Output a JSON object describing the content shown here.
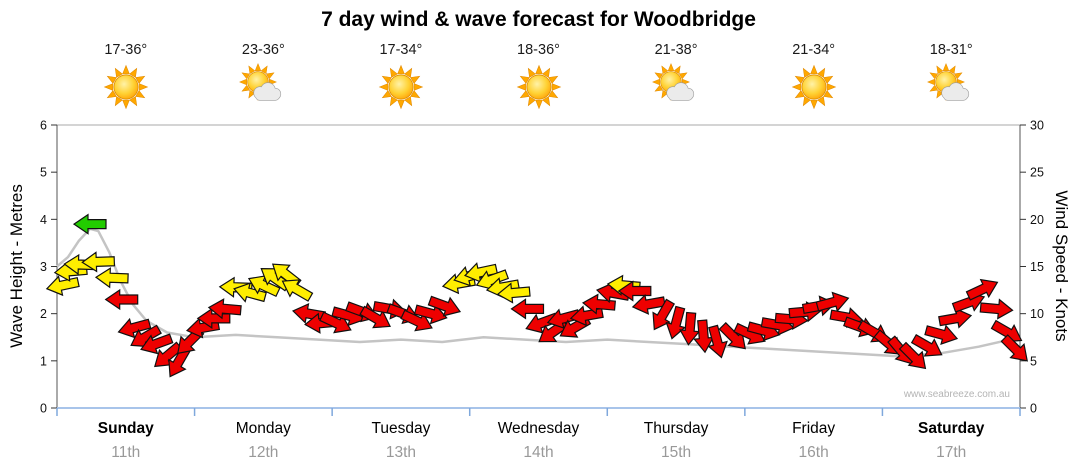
{
  "title": "7 day wind & wave forecast for Woodbridge",
  "watermark": "www.seabreeze.com.au",
  "days": [
    {
      "name": "Sunday",
      "date": "11th",
      "temp": "17-36°",
      "icon": "sunny",
      "bold": true
    },
    {
      "name": "Monday",
      "date": "12th",
      "temp": "23-36°",
      "icon": "partly-cloudy",
      "bold": false
    },
    {
      "name": "Tuesday",
      "date": "13th",
      "temp": "17-34°",
      "icon": "sunny",
      "bold": false
    },
    {
      "name": "Wednesday",
      "date": "14th",
      "temp": "18-36°",
      "icon": "sunny",
      "bold": false
    },
    {
      "name": "Thursday",
      "date": "15th",
      "temp": "21-38°",
      "icon": "partly-cloudy",
      "bold": false
    },
    {
      "name": "Friday",
      "date": "16th",
      "temp": "21-34°",
      "icon": "sunny",
      "bold": false
    },
    {
      "name": "Saturday",
      "date": "17th",
      "temp": "18-31°",
      "icon": "partly-cloudy",
      "bold": true
    }
  ],
  "chart_data": {
    "type": "wind-wave-forecast",
    "title": "7 day wind & wave forecast for Woodbridge",
    "x_days": [
      "Sunday",
      "Monday",
      "Tuesday",
      "Wednesday",
      "Thursday",
      "Friday",
      "Saturday"
    ],
    "y_left": {
      "label": "Wave Height - Metres",
      "min": 0,
      "max": 6,
      "ticks": [
        0,
        1,
        2,
        3,
        4,
        5,
        6
      ]
    },
    "y_right": {
      "label": "Wind Speed - Knots",
      "min": 0,
      "max": 30,
      "ticks": [
        0,
        5,
        10,
        15,
        20,
        25,
        30
      ]
    },
    "colors": {
      "wind_red": "#ee0000",
      "wind_yellow": "#ffee00",
      "wind_green": "#22cc00",
      "wave_line": "#c4c4c4",
      "x_axis_blue": "#a8c4ea",
      "day_tick_blue": "#7fa8dc"
    },
    "wave_height_m": [
      [
        0.0,
        3.0
      ],
      [
        0.08,
        3.2
      ],
      [
        0.16,
        3.55
      ],
      [
        0.24,
        3.8
      ],
      [
        0.3,
        3.75
      ],
      [
        0.38,
        3.3
      ],
      [
        0.46,
        2.7
      ],
      [
        0.55,
        2.2
      ],
      [
        0.65,
        1.85
      ],
      [
        0.8,
        1.6
      ],
      [
        1.0,
        1.5
      ],
      [
        1.3,
        1.55
      ],
      [
        1.6,
        1.5
      ],
      [
        1.9,
        1.45
      ],
      [
        2.2,
        1.4
      ],
      [
        2.5,
        1.45
      ],
      [
        2.8,
        1.4
      ],
      [
        3.1,
        1.5
      ],
      [
        3.4,
        1.45
      ],
      [
        3.7,
        1.4
      ],
      [
        4.0,
        1.45
      ],
      [
        4.3,
        1.4
      ],
      [
        4.6,
        1.35
      ],
      [
        4.9,
        1.3
      ],
      [
        5.2,
        1.25
      ],
      [
        5.5,
        1.2
      ],
      [
        5.8,
        1.15
      ],
      [
        6.1,
        1.1
      ],
      [
        6.4,
        1.15
      ],
      [
        6.7,
        1.3
      ],
      [
        7.0,
        1.5
      ]
    ],
    "wind_arrow_format": [
      "t_days",
      "knots",
      "screen_dir_deg",
      "strength_color"
    ],
    "wind_arrows": [
      [
        0.04,
        13.0,
        168,
        "yellow"
      ],
      [
        0.1,
        14.5,
        175,
        "yellow"
      ],
      [
        0.17,
        15.2,
        182,
        "yellow"
      ],
      [
        0.24,
        19.5,
        180,
        "green"
      ],
      [
        0.3,
        15.5,
        178,
        "yellow"
      ],
      [
        0.4,
        13.8,
        182,
        "yellow"
      ],
      [
        0.47,
        11.5,
        180,
        "red"
      ],
      [
        0.56,
        8.5,
        165,
        "red"
      ],
      [
        0.64,
        7.5,
        150,
        "red"
      ],
      [
        0.72,
        6.8,
        160,
        "red"
      ],
      [
        0.8,
        5.5,
        140,
        "red"
      ],
      [
        0.88,
        4.8,
        120,
        "red"
      ],
      [
        0.96,
        7.0,
        135,
        "red"
      ],
      [
        1.06,
        8.5,
        170,
        "red"
      ],
      [
        1.14,
        9.5,
        180,
        "red"
      ],
      [
        1.22,
        10.5,
        185,
        "red"
      ],
      [
        1.3,
        12.8,
        182,
        "yellow"
      ],
      [
        1.4,
        12.2,
        195,
        "yellow"
      ],
      [
        1.5,
        13.0,
        205,
        "yellow"
      ],
      [
        1.58,
        13.8,
        215,
        "yellow"
      ],
      [
        1.66,
        14.2,
        218,
        "yellow"
      ],
      [
        1.74,
        12.6,
        210,
        "yellow"
      ],
      [
        1.83,
        10.0,
        190,
        "red"
      ],
      [
        1.92,
        9.0,
        175,
        "red"
      ],
      [
        2.03,
        9.0,
        25,
        "red"
      ],
      [
        2.12,
        9.8,
        15,
        "red"
      ],
      [
        2.22,
        10.2,
        20,
        "red"
      ],
      [
        2.32,
        9.5,
        30,
        "red"
      ],
      [
        2.42,
        10.5,
        10,
        "red"
      ],
      [
        2.52,
        10.0,
        20,
        "red"
      ],
      [
        2.62,
        9.2,
        25,
        "red"
      ],
      [
        2.72,
        10.0,
        15,
        "red"
      ],
      [
        2.82,
        10.8,
        20,
        "red"
      ],
      [
        2.92,
        13.2,
        170,
        "yellow"
      ],
      [
        3.0,
        14.0,
        165,
        "yellow"
      ],
      [
        3.08,
        14.4,
        168,
        "yellow"
      ],
      [
        3.16,
        13.6,
        160,
        "yellow"
      ],
      [
        3.24,
        12.8,
        170,
        "yellow"
      ],
      [
        3.32,
        12.2,
        175,
        "yellow"
      ],
      [
        3.42,
        10.5,
        180,
        "red"
      ],
      [
        3.52,
        9.0,
        160,
        "red"
      ],
      [
        3.6,
        8.0,
        145,
        "red"
      ],
      [
        3.68,
        9.5,
        165,
        "red"
      ],
      [
        3.76,
        8.5,
        150,
        "red"
      ],
      [
        3.85,
        9.8,
        170,
        "red"
      ],
      [
        3.94,
        11.0,
        185,
        "red"
      ],
      [
        4.04,
        12.2,
        190,
        "red"
      ],
      [
        4.12,
        13.0,
        185,
        "yellow"
      ],
      [
        4.2,
        12.4,
        180,
        "red"
      ],
      [
        4.3,
        11.0,
        170,
        "red"
      ],
      [
        4.4,
        9.8,
        120,
        "red"
      ],
      [
        4.5,
        9.0,
        105,
        "red"
      ],
      [
        4.6,
        8.4,
        95,
        "red"
      ],
      [
        4.7,
        7.6,
        85,
        "red"
      ],
      [
        4.8,
        7.0,
        75,
        "red"
      ],
      [
        4.92,
        7.5,
        45,
        "red"
      ],
      [
        5.04,
        7.8,
        25,
        "red"
      ],
      [
        5.14,
        8.2,
        15,
        "red"
      ],
      [
        5.24,
        8.8,
        10,
        "red"
      ],
      [
        5.34,
        9.4,
        5,
        "red"
      ],
      [
        5.44,
        10.2,
        355,
        "red"
      ],
      [
        5.54,
        10.8,
        350,
        "red"
      ],
      [
        5.64,
        11.2,
        345,
        "red"
      ],
      [
        5.74,
        9.6,
        10,
        "red"
      ],
      [
        5.84,
        8.6,
        20,
        "red"
      ],
      [
        5.94,
        8.0,
        30,
        "red"
      ],
      [
        6.05,
        6.8,
        40,
        "red"
      ],
      [
        6.14,
        6.0,
        50,
        "red"
      ],
      [
        6.23,
        5.4,
        45,
        "red"
      ],
      [
        6.33,
        6.5,
        30,
        "red"
      ],
      [
        6.43,
        7.8,
        15,
        "red"
      ],
      [
        6.53,
        9.5,
        350,
        "red"
      ],
      [
        6.63,
        11.2,
        340,
        "red"
      ],
      [
        6.73,
        12.6,
        335,
        "red"
      ],
      [
        6.83,
        10.5,
        5,
        "red"
      ],
      [
        6.91,
        8.0,
        30,
        "red"
      ],
      [
        6.97,
        6.2,
        45,
        "red"
      ]
    ]
  }
}
